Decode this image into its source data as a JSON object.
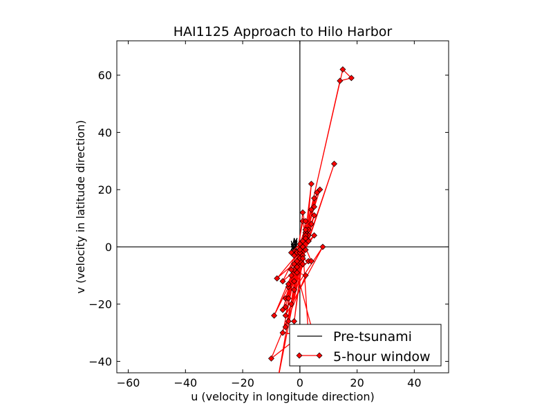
{
  "chart_data": {
    "type": "line",
    "title": "HAI1125   Approach to Hilo Harbor",
    "xlabel": "u (velocity in longitude direction)",
    "ylabel": "v (velocity in latitude direction)",
    "xlim": [
      -64,
      52
    ],
    "ylim": [
      -44,
      72
    ],
    "xticks": [
      -60,
      -40,
      -20,
      0,
      20,
      40
    ],
    "yticks": [
      -40,
      -20,
      0,
      20,
      40,
      60
    ],
    "xtick_labels": [
      "−60",
      "−40",
      "−20",
      "0",
      "20",
      "40"
    ],
    "ytick_labels": [
      "−40",
      "−20",
      "0",
      "20",
      "40",
      "60"
    ],
    "grid": false,
    "reference_lines": {
      "x": 0,
      "y": 0
    },
    "legend": {
      "placement": "lower-right",
      "entries": [
        "Pre-tsunami",
        "5-hour window"
      ]
    },
    "series": [
      {
        "name": "Pre-tsunami",
        "color": "#000000",
        "marker": "none",
        "points": [
          [
            -2,
            0
          ],
          [
            -3,
            1
          ],
          [
            -2,
            -2
          ],
          [
            -1,
            3
          ],
          [
            -3,
            -1
          ],
          [
            -2,
            1
          ],
          [
            -1,
            -1
          ],
          [
            -3,
            0
          ],
          [
            -2,
            2
          ],
          [
            -1,
            -2
          ],
          [
            -2,
            0
          ],
          [
            -1,
            1
          ],
          [
            -3,
            -2
          ],
          [
            -2,
            3
          ],
          [
            -1,
            0
          ],
          [
            -2,
            -1
          ],
          [
            -3,
            2
          ],
          [
            -1,
            -3
          ],
          [
            -2,
            0
          ],
          [
            -1,
            2
          ],
          [
            -2,
            -2
          ],
          [
            -3,
            1
          ],
          [
            -2,
            0
          ]
        ]
      },
      {
        "name": "5-hour window",
        "color": "#ff0000",
        "marker": "diamond",
        "points": [
          [
            -1,
            -2
          ],
          [
            1,
            9
          ],
          [
            2,
            3
          ],
          [
            -1,
            -6
          ],
          [
            1,
            12
          ],
          [
            3,
            2
          ],
          [
            1,
            -3
          ],
          [
            4,
            22
          ],
          [
            2,
            -1
          ],
          [
            5,
            17
          ],
          [
            2,
            5
          ],
          [
            15,
            62
          ],
          [
            18,
            59
          ],
          [
            14,
            58
          ],
          [
            0,
            -4
          ],
          [
            -2,
            -8
          ],
          [
            3,
            6
          ],
          [
            -4,
            -14
          ],
          [
            6,
            19
          ],
          [
            -3,
            -10
          ],
          [
            7,
            20
          ],
          [
            0,
            -2
          ],
          [
            -5,
            -18
          ],
          [
            4,
            8
          ],
          [
            -6,
            -22
          ],
          [
            5,
            14
          ],
          [
            -2,
            -12
          ],
          [
            12,
            29
          ],
          [
            3,
            2
          ],
          [
            -8,
            -11
          ],
          [
            -1,
            -5
          ],
          [
            -5,
            -24
          ],
          [
            8,
            0
          ],
          [
            -2,
            -15
          ],
          [
            2,
            9
          ],
          [
            -3,
            -20
          ],
          [
            4,
            13
          ],
          [
            -4,
            -18
          ],
          [
            3,
            4
          ],
          [
            -9,
            -24
          ],
          [
            1,
            -4
          ],
          [
            -2,
            -26
          ],
          [
            2,
            6
          ],
          [
            -4,
            -13
          ],
          [
            5,
            11
          ],
          [
            -5,
            -28
          ],
          [
            6,
            19
          ],
          [
            -3,
            -8
          ],
          [
            2,
            -10
          ],
          [
            -10,
            -39
          ],
          [
            4,
            -28
          ],
          [
            -1,
            -9
          ],
          [
            3,
            -5
          ],
          [
            -2,
            -3
          ],
          [
            1,
            0
          ],
          [
            -3,
            -2
          ],
          [
            0,
            1
          ],
          [
            -4,
            -26
          ],
          [
            1,
            -6
          ],
          [
            -6,
            -12
          ],
          [
            2,
            4
          ],
          [
            -5,
            -21
          ],
          [
            0,
            -2
          ],
          [
            -8,
            -48
          ],
          [
            2,
            3
          ],
          [
            -1,
            -7
          ],
          [
            4,
            -5
          ],
          [
            1,
            2
          ],
          [
            -2,
            -6
          ],
          [
            5,
            4
          ],
          [
            0,
            -1
          ],
          [
            -6,
            -30
          ],
          [
            3,
            -31
          ],
          [
            1,
            0
          ]
        ]
      }
    ]
  }
}
